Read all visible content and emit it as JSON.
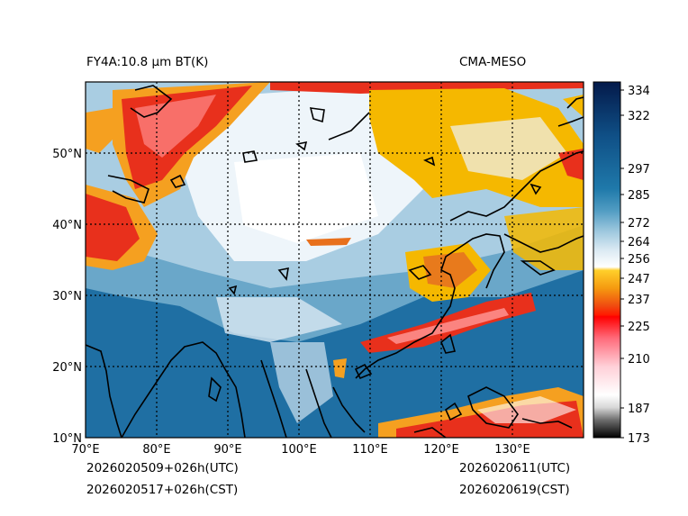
{
  "title_left": "FY4A:10.8 µm BT(K)",
  "title_right": "CMA-MESO",
  "time_utc_left": "2026020509+026h(UTC)",
  "time_cst_left": "2026020517+026h(CST)",
  "time_utc_right": "2026020611(UTC)",
  "time_cst_right": "2026020619(CST)",
  "map": {
    "lon_range": [
      70,
      140
    ],
    "lat_range": [
      10,
      60
    ],
    "lon_ticks": [
      {
        "value": 70,
        "label": "70°E"
      },
      {
        "value": 80,
        "label": "80°E"
      },
      {
        "value": 90,
        "label": "90°E"
      },
      {
        "value": 100,
        "label": "100°E"
      },
      {
        "value": 110,
        "label": "110°E"
      },
      {
        "value": 120,
        "label": "120°E"
      },
      {
        "value": 130,
        "label": "130°E"
      }
    ],
    "lat_ticks": [
      {
        "value": 10,
        "label": "10°N"
      },
      {
        "value": 20,
        "label": "20°N"
      },
      {
        "value": 30,
        "label": "30°N"
      },
      {
        "value": 40,
        "label": "40°N"
      },
      {
        "value": 50,
        "label": "50°N"
      }
    ]
  },
  "colorbar": {
    "range": [
      173,
      336
    ],
    "ticks": [
      {
        "value": 334,
        "label": "334"
      },
      {
        "value": 322,
        "label": "322"
      },
      {
        "value": 297,
        "label": "297"
      },
      {
        "value": 285,
        "label": "285"
      },
      {
        "value": 272,
        "label": "272"
      },
      {
        "value": 264,
        "label": "264"
      },
      {
        "value": 256,
        "label": "256"
      },
      {
        "value": 247,
        "label": "247"
      },
      {
        "value": 237,
        "label": "237"
      },
      {
        "value": 225,
        "label": "225"
      },
      {
        "value": 210,
        "label": "210"
      },
      {
        "value": 187,
        "label": "187"
      },
      {
        "value": 173,
        "label": "173"
      }
    ]
  },
  "colors": {
    "ocean_clear": "#1f6fa3",
    "land_clear": "#7fb3d0",
    "cloud_low": "#e8f2f8",
    "cloud_mid": "#f5b800",
    "cloud_high": "#e8301c"
  }
}
